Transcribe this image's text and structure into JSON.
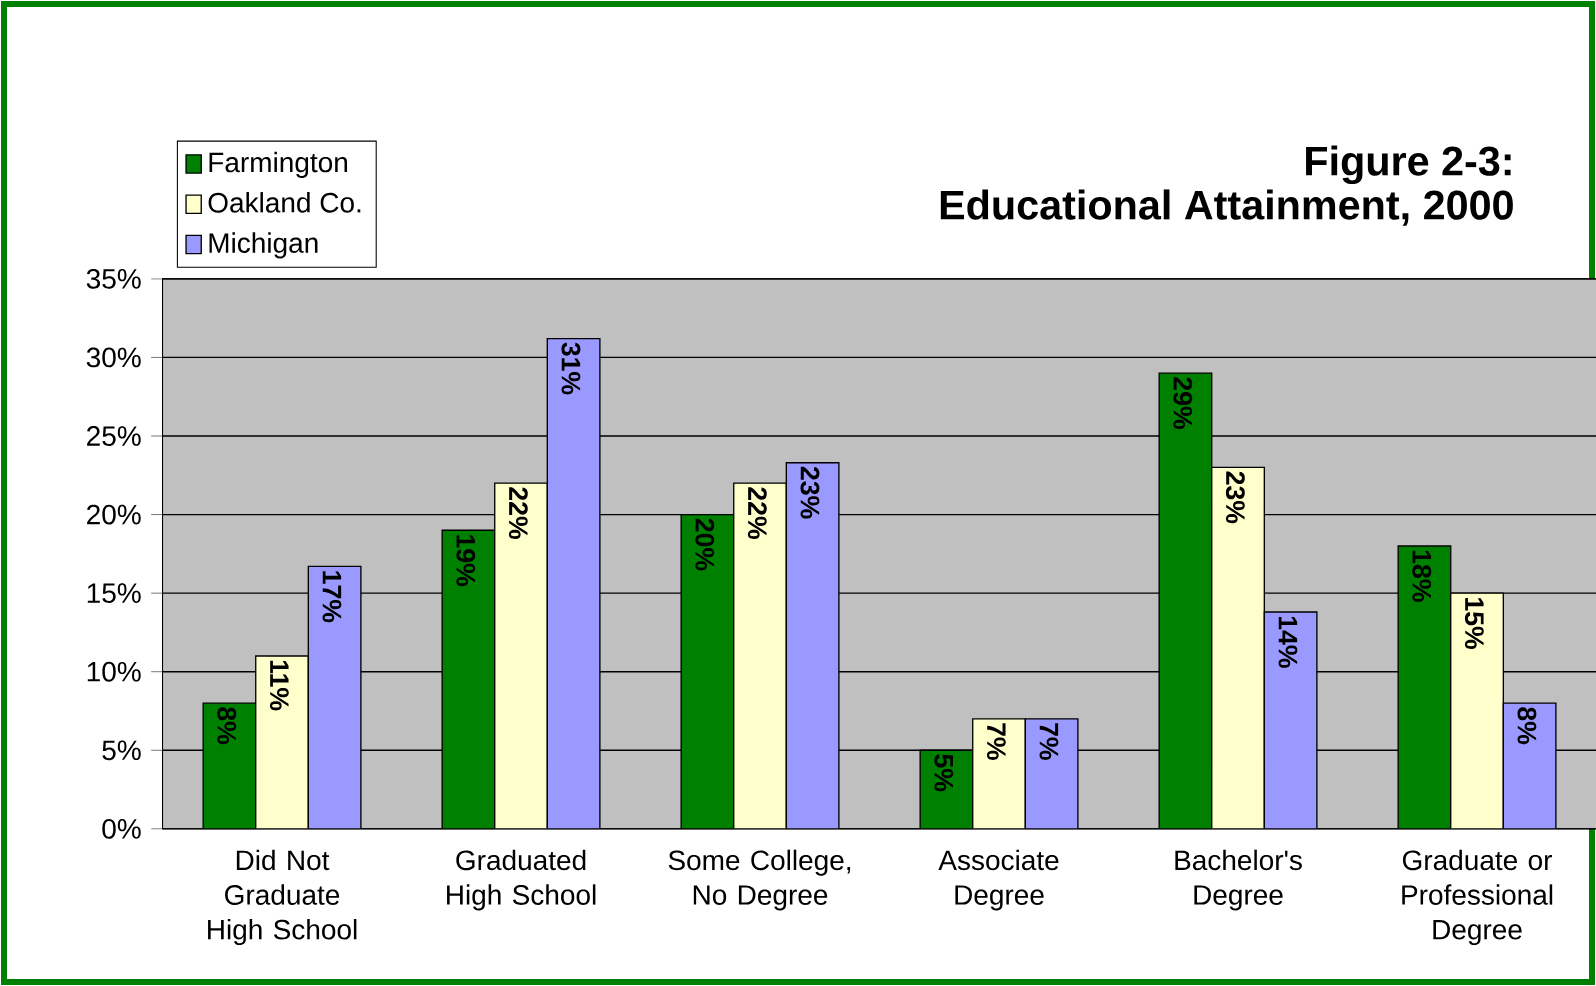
{
  "chart_data": {
    "type": "bar",
    "title": "Figure 2-3:",
    "subtitle": "Educational Attainment, 2000",
    "categories": [
      "Did Not Graduate High School",
      "Graduated High School",
      "Some College, No Degree",
      "Associate Degree",
      "Bachelor's Degree",
      "Graduate or Professional Degree"
    ],
    "series": [
      {
        "name": "Farmington",
        "color": "#008000",
        "values": [
          8,
          19,
          20,
          5,
          29,
          18
        ],
        "value_labels": [
          "8%",
          "19%",
          "20%",
          "5%",
          "29%",
          "18%"
        ]
      },
      {
        "name": "Oakland Co.",
        "color": "#ffffcc",
        "values": [
          11,
          22,
          22,
          7,
          23,
          15
        ],
        "value_labels": [
          "11%",
          "22%",
          "22%",
          "7%",
          "23%",
          "15%"
        ]
      },
      {
        "name": "Michigan",
        "color": "#9999ff",
        "values": [
          16.7,
          31.2,
          23.3,
          7,
          13.8,
          8
        ],
        "value_labels": [
          "17%",
          "31%",
          "23%",
          "7%",
          "14%",
          "8%"
        ]
      }
    ],
    "ylim": [
      0,
      35
    ],
    "yticks": [
      {
        "value": 0,
        "label": "0%"
      },
      {
        "value": 5,
        "label": "5%"
      },
      {
        "value": 10,
        "label": "10%"
      },
      {
        "value": 15,
        "label": "15%"
      },
      {
        "value": 20,
        "label": "20%"
      },
      {
        "value": 25,
        "label": "25%"
      },
      {
        "value": 30,
        "label": "30%"
      },
      {
        "value": 35,
        "label": "35%"
      }
    ],
    "grid": "y",
    "legend": "top left"
  }
}
